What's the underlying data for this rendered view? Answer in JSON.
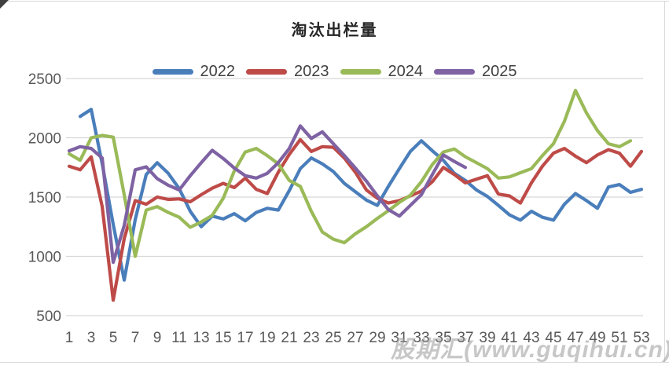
{
  "title": "淘汰出栏量",
  "watermark": "股期汇(www.guqihui.cn)",
  "axis": {
    "y_tick_color": "#595959",
    "x_tick_color": "#595959",
    "gridline_color": "#d6d6d6"
  },
  "chart_data": {
    "type": "line",
    "title": "淘汰出栏量",
    "xlabel": "",
    "ylabel": "",
    "x_unit": "week",
    "x_range": [
      1,
      53
    ],
    "x_tick_labels": [
      1,
      3,
      5,
      7,
      9,
      11,
      13,
      15,
      17,
      19,
      21,
      23,
      25,
      27,
      29,
      31,
      33,
      35,
      37,
      39,
      41,
      43,
      45,
      47,
      49,
      51,
      53
    ],
    "ylim": [
      500,
      2500
    ],
    "y_ticks": [
      500,
      1000,
      1500,
      2000,
      2500
    ],
    "grid": "horizontal",
    "legend_position": "top",
    "series": [
      {
        "name": "2022",
        "color": "#4A7EBB",
        "start_week": 2,
        "values": [
          2180,
          2240,
          1780,
          1270,
          800,
          1310,
          1690,
          1790,
          1700,
          1570,
          1380,
          1250,
          1340,
          1315,
          1360,
          1300,
          1370,
          1405,
          1390,
          1555,
          1740,
          1830,
          1780,
          1715,
          1615,
          1545,
          1475,
          1430,
          1590,
          1740,
          1885,
          1975,
          1890,
          1810,
          1700,
          1640,
          1560,
          1505,
          1430,
          1350,
          1305,
          1380,
          1330,
          1305,
          1440,
          1530,
          1470,
          1405,
          1585,
          1605,
          1540,
          1565
        ]
      },
      {
        "name": "2023",
        "color": "#BE4B48",
        "start_week": 1,
        "values": [
          1760,
          1730,
          1840,
          1420,
          630,
          1150,
          1470,
          1440,
          1500,
          1480,
          1485,
          1460,
          1520,
          1575,
          1615,
          1580,
          1660,
          1565,
          1530,
          1710,
          1860,
          1985,
          1885,
          1925,
          1920,
          1830,
          1710,
          1560,
          1490,
          1450,
          1470,
          1510,
          1550,
          1630,
          1750,
          1690,
          1620,
          1650,
          1680,
          1525,
          1510,
          1450,
          1620,
          1760,
          1870,
          1910,
          1845,
          1790,
          1855,
          1900,
          1870,
          1760,
          1885
        ]
      },
      {
        "name": "2024",
        "color": "#9ABA58",
        "start_week": 1,
        "values": [
          1865,
          1810,
          2000,
          2020,
          2005,
          1520,
          1000,
          1390,
          1420,
          1370,
          1330,
          1245,
          1290,
          1345,
          1490,
          1720,
          1880,
          1910,
          1850,
          1780,
          1640,
          1590,
          1380,
          1205,
          1145,
          1115,
          1190,
          1250,
          1320,
          1385,
          1455,
          1515,
          1630,
          1775,
          1880,
          1905,
          1840,
          1790,
          1740,
          1660,
          1670,
          1705,
          1740,
          1850,
          1950,
          2140,
          2400,
          2210,
          2060,
          1950,
          1925,
          1975
        ]
      },
      {
        "name": "2025",
        "color": "#7E62A3",
        "start_week": 1,
        "values": [
          1890,
          1925,
          1910,
          1830,
          950,
          1260,
          1730,
          1755,
          1655,
          1600,
          1560,
          1680,
          1790,
          1895,
          1825,
          1745,
          1680,
          1660,
          1700,
          1790,
          1910,
          2100,
          1995,
          2050,
          1950,
          1850,
          1745,
          1635,
          1510,
          1395,
          1340,
          1430,
          1520,
          1690,
          1855,
          1800,
          1750
        ]
      }
    ]
  }
}
